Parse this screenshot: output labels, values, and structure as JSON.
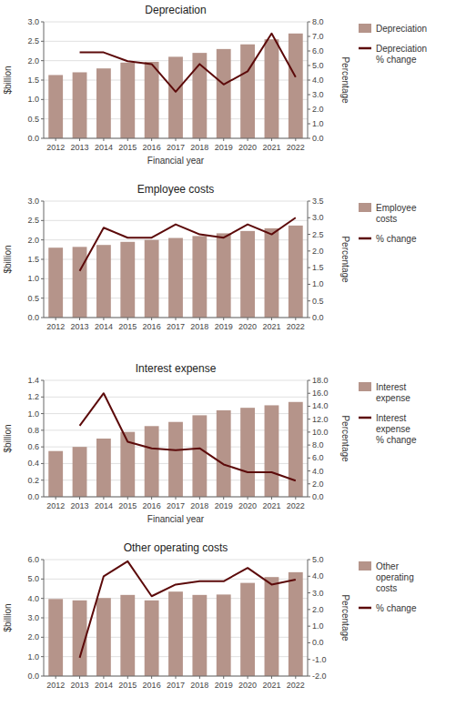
{
  "chart_data": [
    {
      "type": "bar",
      "title": "Depreciation",
      "x_label": "Financial year",
      "y_label": "$billion",
      "y2_label": "Percentage",
      "categories": [
        "2012",
        "2013",
        "2014",
        "2015",
        "2016",
        "2017",
        "2018",
        "2019",
        "2020",
        "2021",
        "2022"
      ],
      "series": [
        {
          "name": "Depreciation",
          "type": "bar",
          "color": "#b5948a",
          "values": [
            1.63,
            1.7,
            1.8,
            1.95,
            1.97,
            2.1,
            2.2,
            2.3,
            2.42,
            2.55,
            2.7
          ]
        },
        {
          "name": "Depreciation\n% change",
          "type": "line",
          "axis": "y2",
          "color": "#5c0a0a",
          "values": [
            null,
            5.9,
            5.9,
            5.3,
            5.1,
            3.2,
            5.1,
            3.7,
            4.6,
            7.2,
            4.2
          ]
        }
      ],
      "ylim": [
        0,
        3.0
      ],
      "yticks": [
        {
          "value": 0,
          "label": "0.0"
        },
        0.5,
        {
          "value": 1,
          "label": "1.0"
        },
        1.5,
        {
          "value": 2,
          "label": "2.0"
        },
        2.5,
        {
          "value": 3,
          "label": "3.0"
        }
      ],
      "y2lim": [
        0,
        8.0
      ],
      "y2ticks": [
        {
          "value": 0,
          "label": "0.0"
        },
        {
          "value": 1,
          "label": "1.0"
        },
        {
          "value": 2,
          "label": "2.0"
        },
        {
          "value": 3,
          "label": "3.0"
        },
        {
          "value": 4,
          "label": "4.0"
        },
        {
          "value": 5,
          "label": "5.0"
        },
        {
          "value": 6,
          "label": "6.0"
        },
        {
          "value": 7,
          "label": "7.0"
        },
        {
          "value": 8,
          "label": "8.0"
        }
      ],
      "grid": true,
      "legend": "right"
    },
    {
      "type": "bar",
      "title": "Employee costs",
      "y_label": "$billion",
      "y2_label": "Percentage",
      "categories": [
        "2012",
        "2013",
        "2014",
        "2015",
        "2016",
        "2017",
        "2018",
        "2019",
        "2020",
        "2021",
        "2022"
      ],
      "series": [
        {
          "name": "Employee\ncosts",
          "type": "bar",
          "color": "#b5948a",
          "values": [
            1.8,
            1.82,
            1.87,
            1.95,
            2.0,
            2.05,
            2.1,
            2.17,
            2.23,
            2.3,
            2.37
          ]
        },
        {
          "name": "% change",
          "type": "line",
          "axis": "y2",
          "color": "#5c0a0a",
          "values": [
            null,
            1.4,
            2.7,
            2.4,
            2.4,
            2.8,
            2.5,
            2.4,
            2.8,
            2.5,
            3.0
          ]
        }
      ],
      "ylim": [
        0,
        3.0
      ],
      "yticks": [
        {
          "value": 0,
          "label": "0.0"
        },
        0.5,
        {
          "value": 1,
          "label": "1.0"
        },
        1.5,
        {
          "value": 2,
          "label": "2.0"
        },
        2.5,
        {
          "value": 3,
          "label": "3.0"
        }
      ],
      "y2lim": [
        0,
        3.5
      ],
      "y2ticks": [
        {
          "value": 0,
          "label": "0.0"
        },
        0.5,
        {
          "value": 1,
          "label": "1.0"
        },
        1.5,
        {
          "value": 2,
          "label": "2.0"
        },
        2.5,
        {
          "value": 3,
          "label": "3.0"
        },
        3.5
      ],
      "grid": true,
      "legend": "right"
    },
    {
      "type": "bar",
      "title": "Interest expense",
      "x_label": "Financial year",
      "y_label": "$billion",
      "y2_label": "Percentage",
      "categories": [
        "2012",
        "2013",
        "2014",
        "2015",
        "2016",
        "2017",
        "2018",
        "2019",
        "2020",
        "2021",
        "2022"
      ],
      "series": [
        {
          "name": "Interest\nexpense",
          "type": "bar",
          "color": "#b5948a",
          "values": [
            0.55,
            0.6,
            0.7,
            0.78,
            0.85,
            0.9,
            0.98,
            1.04,
            1.07,
            1.1,
            1.14
          ]
        },
        {
          "name": "Interest\nexpense\n% change",
          "type": "line",
          "axis": "y2",
          "color": "#5c0a0a",
          "values": [
            null,
            11.0,
            16.0,
            8.5,
            7.5,
            7.2,
            7.5,
            5.0,
            3.8,
            3.8,
            2.5
          ]
        }
      ],
      "ylim": [
        0,
        1.4
      ],
      "yticks": [
        {
          "value": 0,
          "label": "0.0"
        },
        0.2,
        0.4,
        0.6,
        0.8,
        {
          "value": 1,
          "label": "1.0"
        },
        1.2,
        1.4
      ],
      "y2lim": [
        0,
        18.0
      ],
      "y2ticks": [
        {
          "value": 0,
          "label": "0.0"
        },
        {
          "value": 2,
          "label": "2.0"
        },
        {
          "value": 4,
          "label": "4.0"
        },
        {
          "value": 6,
          "label": "6.0"
        },
        {
          "value": 8,
          "label": "8.0"
        },
        {
          "value": 10,
          "label": "10.0"
        },
        {
          "value": 12,
          "label": "12.0"
        },
        {
          "value": 14,
          "label": "14.0"
        },
        {
          "value": 16,
          "label": "16.0"
        },
        {
          "value": 18,
          "label": "18.0"
        }
      ],
      "grid": true,
      "legend": "right"
    },
    {
      "type": "bar",
      "title": "Other operating costs",
      "y_label": "$billion",
      "y2_label": "Percentage",
      "categories": [
        "2012",
        "2013",
        "2014",
        "2015",
        "2016",
        "2017",
        "2018",
        "2019",
        "2020",
        "2021",
        "2022"
      ],
      "series": [
        {
          "name": "Other\noperating\ncosts",
          "type": "bar",
          "color": "#b5948a",
          "values": [
            3.97,
            3.9,
            4.02,
            4.18,
            3.9,
            4.35,
            4.18,
            4.2,
            4.8,
            5.1,
            5.35
          ]
        },
        {
          "name": "% change",
          "type": "line",
          "axis": "y2",
          "color": "#5c0a0a",
          "values": [
            null,
            -0.9,
            4.0,
            4.9,
            2.8,
            3.5,
            3.7,
            3.7,
            4.5,
            3.5,
            3.8
          ]
        }
      ],
      "ylim": [
        0,
        6.0
      ],
      "yticks": [
        {
          "value": 0,
          "label": "0.0"
        },
        {
          "value": 1,
          "label": "1.0"
        },
        {
          "value": 2,
          "label": "2.0"
        },
        {
          "value": 3,
          "label": "3.0"
        },
        {
          "value": 4,
          "label": "4.0"
        },
        {
          "value": 5,
          "label": "5.0"
        },
        {
          "value": 6,
          "label": "6.0"
        }
      ],
      "y2lim": [
        -2.0,
        5.0
      ],
      "y2ticks": [
        {
          "value": -2,
          "label": "-2.0"
        },
        {
          "value": -1,
          "label": "-1.0"
        },
        {
          "value": 0,
          "label": "0.0"
        },
        {
          "value": 1,
          "label": "1.0"
        },
        {
          "value": 2,
          "label": "2.0"
        },
        {
          "value": 3,
          "label": "3.0"
        },
        {
          "value": 4,
          "label": "4.0"
        },
        {
          "value": 5,
          "label": "5.0"
        }
      ],
      "grid": true,
      "legend": "right"
    }
  ]
}
